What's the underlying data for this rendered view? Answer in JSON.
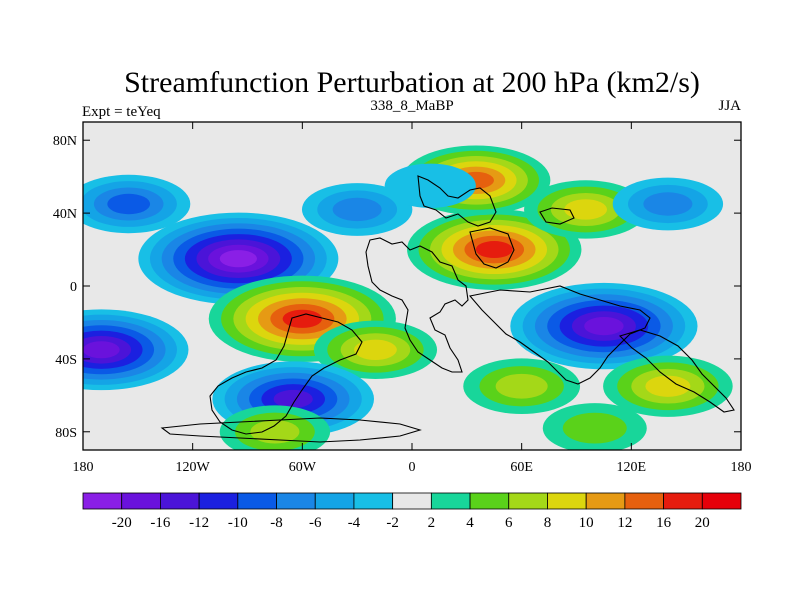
{
  "chart_data": {
    "type": "heatmap",
    "title": "Streamfunction Perturbation at 200 hPa (km2/s)",
    "left_label": "Expt = teYeq",
    "center_label": "338_8_MaBP",
    "right_label": "JJA",
    "x_ticks": [
      {
        "value": -180,
        "label": "180"
      },
      {
        "value": -120,
        "label": "120W"
      },
      {
        "value": -60,
        "label": "60W"
      },
      {
        "value": 0,
        "label": "0"
      },
      {
        "value": 60,
        "label": "60E"
      },
      {
        "value": 120,
        "label": "120E"
      },
      {
        "value": 180,
        "label": "180"
      }
    ],
    "y_ticks": [
      {
        "value": 80,
        "label": "80N"
      },
      {
        "value": 40,
        "label": "40N"
      },
      {
        "value": 0,
        "label": "0"
      },
      {
        "value": -40,
        "label": "40S"
      },
      {
        "value": -80,
        "label": "80S"
      }
    ],
    "xlim": [
      -180,
      180
    ],
    "ylim": [
      -90,
      90
    ],
    "levels": [
      -20,
      -16,
      -12,
      -10,
      -8,
      -6,
      -4,
      -2,
      2,
      4,
      6,
      8,
      10,
      12,
      16,
      20
    ],
    "level_labels": [
      "-20",
      "-16",
      "-12",
      "-10",
      "-8",
      "-6",
      "-4",
      "-2",
      "2",
      "4",
      "6",
      "8",
      "10",
      "12",
      "16",
      "20"
    ],
    "colors": [
      "#8a1fe6",
      "#6a12dc",
      "#4b14d8",
      "#1b20e0",
      "#0a5ae6",
      "#1a86e6",
      "#14a4e6",
      "#18bfe6",
      "#e8e8e8",
      "#18d69a",
      "#5ad21a",
      "#a4d818",
      "#dcd60e",
      "#e69a14",
      "#e6600e",
      "#e61c0e",
      "#e6000a"
    ],
    "field_centers": [
      {
        "lon": -95,
        "lat": 15,
        "value": -20
      },
      {
        "lon": -155,
        "lat": 45,
        "value": -8
      },
      {
        "lon": -30,
        "lat": 42,
        "value": -6
      },
      {
        "lon": -170,
        "lat": -35,
        "value": -16
      },
      {
        "lon": -60,
        "lat": -18,
        "value": 18
      },
      {
        "lon": -20,
        "lat": -35,
        "value": 8
      },
      {
        "lon": -65,
        "lat": -62,
        "value": -14
      },
      {
        "lon": -75,
        "lat": -80,
        "value": 6
      },
      {
        "lon": 45,
        "lat": 20,
        "value": 16
      },
      {
        "lon": 35,
        "lat": 58,
        "value": 12
      },
      {
        "lon": 95,
        "lat": 42,
        "value": 8
      },
      {
        "lon": 140,
        "lat": 45,
        "value": -6
      },
      {
        "lon": 10,
        "lat": 55,
        "value": -3
      },
      {
        "lon": 105,
        "lat": -22,
        "value": -18
      },
      {
        "lon": 60,
        "lat": -55,
        "value": 7
      },
      {
        "lon": 140,
        "lat": -55,
        "value": 9
      },
      {
        "lon": 100,
        "lat": -78,
        "value": 5
      }
    ]
  }
}
